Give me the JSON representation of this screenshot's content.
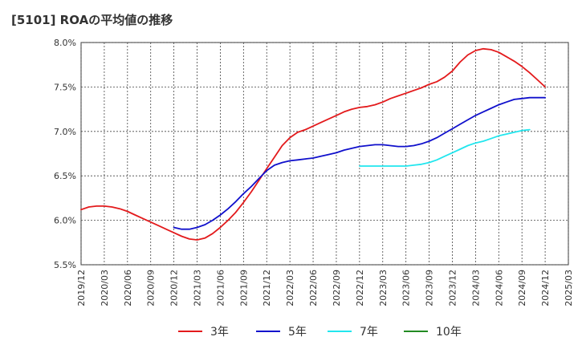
{
  "title": "[5101]  ROAの平均値の推移",
  "chart_data": {
    "type": "line",
    "ylim": [
      5.5,
      8.0
    ],
    "yticks": [
      "5.5%",
      "6.0%",
      "6.5%",
      "7.0%",
      "7.5%",
      "8.0%"
    ],
    "ytick_values": [
      5.5,
      6.0,
      6.5,
      7.0,
      7.5,
      8.0
    ],
    "xticks": [
      "2019/12",
      "2020/03",
      "2020/06",
      "2020/09",
      "2020/12",
      "2021/03",
      "2021/06",
      "2021/09",
      "2021/12",
      "2022/03",
      "2022/06",
      "2022/09",
      "2022/12",
      "2023/03",
      "2023/06",
      "2023/09",
      "2023/12",
      "2024/03",
      "2024/06",
      "2024/09",
      "2024/12",
      "2025/03"
    ],
    "grid": true,
    "legend_position": "bottom",
    "series": [
      {
        "name": "3年",
        "color": "#e31a1c",
        "points": [
          [
            "2019/12",
            6.12
          ],
          [
            "2020/01",
            6.15
          ],
          [
            "2020/02",
            6.16
          ],
          [
            "2020/03",
            6.16
          ],
          [
            "2020/04",
            6.15
          ],
          [
            "2020/05",
            6.13
          ],
          [
            "2020/06",
            6.1
          ],
          [
            "2020/07",
            6.06
          ],
          [
            "2020/08",
            6.02
          ],
          [
            "2020/09",
            5.98
          ],
          [
            "2020/10",
            5.94
          ],
          [
            "2020/11",
            5.9
          ],
          [
            "2020/12",
            5.86
          ],
          [
            "2021/01",
            5.82
          ],
          [
            "2021/02",
            5.79
          ],
          [
            "2021/03",
            5.78
          ],
          [
            "2021/04",
            5.8
          ],
          [
            "2021/05",
            5.85
          ],
          [
            "2021/06",
            5.92
          ],
          [
            "2021/07",
            6.0
          ],
          [
            "2021/08",
            6.09
          ],
          [
            "2021/09",
            6.2
          ],
          [
            "2021/10",
            6.32
          ],
          [
            "2021/11",
            6.45
          ],
          [
            "2021/12",
            6.58
          ],
          [
            "2022/01",
            6.71
          ],
          [
            "2022/02",
            6.84
          ],
          [
            "2022/03",
            6.93
          ],
          [
            "2022/04",
            6.99
          ],
          [
            "2022/05",
            7.02
          ],
          [
            "2022/06",
            7.06
          ],
          [
            "2022/07",
            7.1
          ],
          [
            "2022/08",
            7.14
          ],
          [
            "2022/09",
            7.18
          ],
          [
            "2022/10",
            7.22
          ],
          [
            "2022/11",
            7.25
          ],
          [
            "2022/12",
            7.27
          ],
          [
            "2023/01",
            7.28
          ],
          [
            "2023/02",
            7.3
          ],
          [
            "2023/03",
            7.33
          ],
          [
            "2023/04",
            7.37
          ],
          [
            "2023/05",
            7.4
          ],
          [
            "2023/06",
            7.43
          ],
          [
            "2023/07",
            7.46
          ],
          [
            "2023/08",
            7.49
          ],
          [
            "2023/09",
            7.53
          ],
          [
            "2023/10",
            7.56
          ],
          [
            "2023/11",
            7.61
          ],
          [
            "2023/12",
            7.68
          ],
          [
            "2024/01",
            7.78
          ],
          [
            "2024/02",
            7.86
          ],
          [
            "2024/03",
            7.91
          ],
          [
            "2024/04",
            7.93
          ],
          [
            "2024/05",
            7.92
          ],
          [
            "2024/06",
            7.89
          ],
          [
            "2024/07",
            7.84
          ],
          [
            "2024/08",
            7.79
          ],
          [
            "2024/09",
            7.73
          ],
          [
            "2024/10",
            7.66
          ],
          [
            "2024/11",
            7.58
          ],
          [
            "2024/12",
            7.5
          ]
        ]
      },
      {
        "name": "5年",
        "color": "#1010cc",
        "points": [
          [
            "2020/12",
            5.92
          ],
          [
            "2021/01",
            5.9
          ],
          [
            "2021/02",
            5.9
          ],
          [
            "2021/03",
            5.92
          ],
          [
            "2021/04",
            5.95
          ],
          [
            "2021/05",
            6.0
          ],
          [
            "2021/06",
            6.06
          ],
          [
            "2021/07",
            6.13
          ],
          [
            "2021/08",
            6.21
          ],
          [
            "2021/09",
            6.3
          ],
          [
            "2021/10",
            6.38
          ],
          [
            "2021/11",
            6.47
          ],
          [
            "2021/12",
            6.56
          ],
          [
            "2022/01",
            6.62
          ],
          [
            "2022/02",
            6.65
          ],
          [
            "2022/03",
            6.67
          ],
          [
            "2022/04",
            6.68
          ],
          [
            "2022/05",
            6.69
          ],
          [
            "2022/06",
            6.7
          ],
          [
            "2022/07",
            6.72
          ],
          [
            "2022/08",
            6.74
          ],
          [
            "2022/09",
            6.76
          ],
          [
            "2022/10",
            6.79
          ],
          [
            "2022/11",
            6.81
          ],
          [
            "2022/12",
            6.83
          ],
          [
            "2023/01",
            6.84
          ],
          [
            "2023/02",
            6.85
          ],
          [
            "2023/03",
            6.85
          ],
          [
            "2023/04",
            6.84
          ],
          [
            "2023/05",
            6.83
          ],
          [
            "2023/06",
            6.83
          ],
          [
            "2023/07",
            6.84
          ],
          [
            "2023/08",
            6.86
          ],
          [
            "2023/09",
            6.89
          ],
          [
            "2023/10",
            6.93
          ],
          [
            "2023/11",
            6.98
          ],
          [
            "2023/12",
            7.03
          ],
          [
            "2024/01",
            7.08
          ],
          [
            "2024/02",
            7.13
          ],
          [
            "2024/03",
            7.18
          ],
          [
            "2024/04",
            7.22
          ],
          [
            "2024/05",
            7.26
          ],
          [
            "2024/06",
            7.3
          ],
          [
            "2024/07",
            7.33
          ],
          [
            "2024/08",
            7.36
          ],
          [
            "2024/09",
            7.37
          ],
          [
            "2024/10",
            7.38
          ],
          [
            "2024/11",
            7.38
          ],
          [
            "2024/12",
            7.38
          ]
        ]
      },
      {
        "name": "7年",
        "color": "#22e6ee",
        "points": [
          [
            "2022/12",
            6.61
          ],
          [
            "2023/01",
            6.61
          ],
          [
            "2023/02",
            6.61
          ],
          [
            "2023/03",
            6.61
          ],
          [
            "2023/04",
            6.61
          ],
          [
            "2023/05",
            6.61
          ],
          [
            "2023/06",
            6.61
          ],
          [
            "2023/07",
            6.62
          ],
          [
            "2023/08",
            6.63
          ],
          [
            "2023/09",
            6.65
          ],
          [
            "2023/10",
            6.68
          ],
          [
            "2023/11",
            6.72
          ],
          [
            "2023/12",
            6.76
          ],
          [
            "2024/01",
            6.8
          ],
          [
            "2024/02",
            6.84
          ],
          [
            "2024/03",
            6.87
          ],
          [
            "2024/04",
            6.89
          ],
          [
            "2024/05",
            6.92
          ],
          [
            "2024/06",
            6.95
          ],
          [
            "2024/07",
            6.97
          ],
          [
            "2024/08",
            6.99
          ],
          [
            "2024/09",
            7.01
          ],
          [
            "2024/10",
            7.02
          ]
        ]
      },
      {
        "name": "10年",
        "color": "#228b22",
        "points": []
      }
    ]
  }
}
